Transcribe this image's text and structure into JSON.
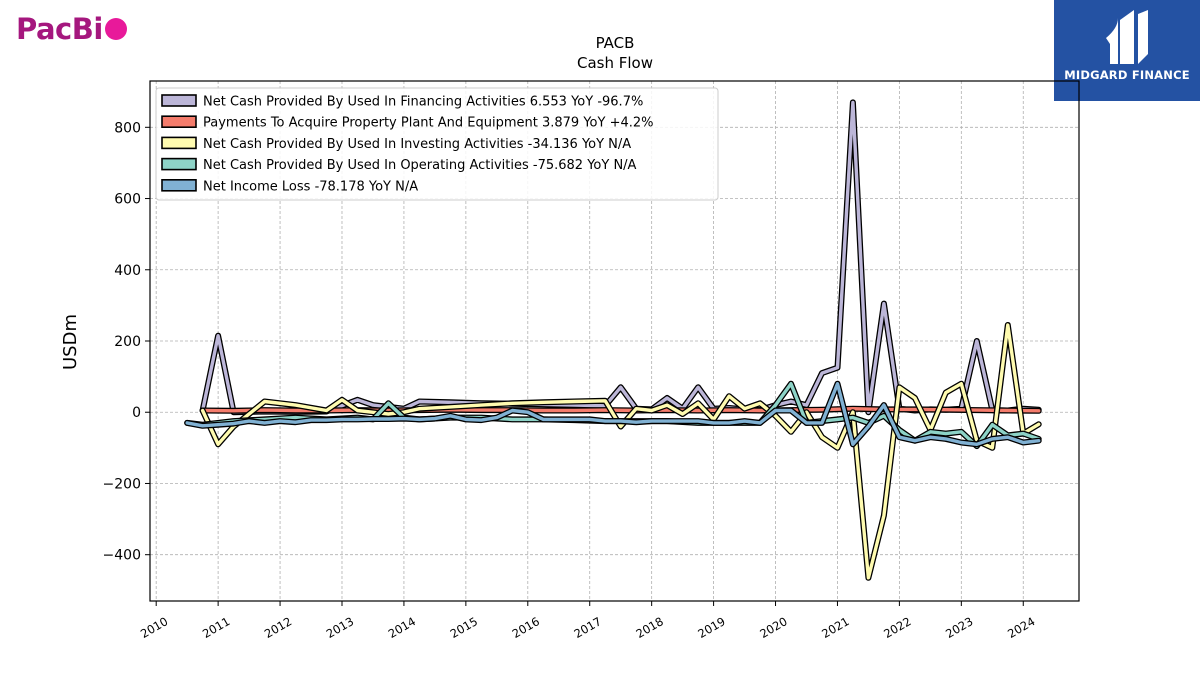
{
  "brand": {
    "left_text": "PacBi",
    "right_logo_text": "MIDGARD FINANCE"
  },
  "colors": {
    "brand_magenta": "#a5177e",
    "brand_pink": "#e8199a",
    "badge_blue": "#2452a3"
  },
  "chart_data": {
    "type": "line",
    "title": "PACB",
    "subtitle": "Cash Flow",
    "xlabel": "",
    "ylabel": "USDm",
    "xlim": [
      2009.9,
      2024.9
    ],
    "ylim": [
      -530,
      930
    ],
    "yticks": [
      -400,
      -200,
      0,
      200,
      400,
      600,
      800
    ],
    "ytick_labels": [
      "−400",
      "−200",
      "0",
      "200",
      "400",
      "600",
      "800"
    ],
    "xticks": [
      2010,
      2011,
      2012,
      2013,
      2014,
      2015,
      2016,
      2017,
      2018,
      2019,
      2020,
      2021,
      2022,
      2023,
      2024
    ],
    "xtick_labels": [
      "2010",
      "2011",
      "2012",
      "2013",
      "2014",
      "2015",
      "2016",
      "2017",
      "2018",
      "2019",
      "2020",
      "2021",
      "2022",
      "2023",
      "2024"
    ],
    "grid": true,
    "legend_position": "top-left",
    "series": [
      {
        "name": "Net Cash Provided By Used In Financing Activities",
        "legend": "Net Cash Provided By Used In Financing Activities  6.553 YoY -96.7%",
        "color": "#bcb6d8",
        "x": [
          2010.75,
          2011.0,
          2011.25,
          2011.75,
          2012.25,
          2012.75,
          2013.25,
          2013.5,
          2013.75,
          2014.0,
          2014.25,
          2014.75,
          2015.25,
          2015.75,
          2016.25,
          2016.75,
          2017.25,
          2017.5,
          2017.75,
          2018.0,
          2018.25,
          2018.5,
          2018.75,
          2019.0,
          2019.25,
          2019.5,
          2019.75,
          2020.0,
          2020.25,
          2020.5,
          2020.75,
          2021.0,
          2021.25,
          2021.5,
          2021.75,
          2022.0,
          2022.25,
          2022.5,
          2022.75,
          2023.0,
          2023.25,
          2023.5,
          2023.75,
          2024.0,
          2024.25
        ],
        "y": [
          5,
          215,
          0,
          2,
          1,
          2,
          35,
          20,
          15,
          10,
          30,
          28,
          25,
          24,
          22,
          20,
          18,
          70,
          10,
          8,
          40,
          10,
          70,
          10,
          12,
          8,
          6,
          20,
          30,
          20,
          110,
          125,
          870,
          0,
          305,
          10,
          5,
          8,
          7,
          10,
          200,
          6,
          5,
          10,
          7
        ]
      },
      {
        "name": "Payments To Acquire Property Plant And Equipment",
        "legend": "Payments To Acquire Property Plant And Equipment  3.879 YoY +4.2%",
        "color": "#f47c6c",
        "x": [
          2010.75,
          2011.25,
          2011.75,
          2012.25,
          2012.75,
          2013.25,
          2013.75,
          2014.25,
          2014.75,
          2015.25,
          2015.75,
          2016.25,
          2016.75,
          2017.25,
          2017.75,
          2018.25,
          2018.75,
          2019.25,
          2019.75,
          2020.25,
          2020.75,
          2021.25,
          2021.75,
          2022.25,
          2022.75,
          2023.25,
          2023.75,
          2024.25
        ],
        "y": [
          5,
          4,
          6,
          5,
          5,
          6,
          5,
          6,
          7,
          6,
          6,
          5,
          5,
          6,
          5,
          6,
          5,
          6,
          5,
          6,
          7,
          10,
          8,
          8,
          7,
          6,
          5,
          4
        ]
      },
      {
        "name": "Net Cash Provided By Used In Investing Activities",
        "legend": "Net Cash Provided By Used In Investing Activities  -34.136 YoY N/A",
        "color": "#fffbb0",
        "x": [
          2010.75,
          2011.0,
          2011.25,
          2011.75,
          2012.25,
          2012.75,
          2013.0,
          2013.25,
          2013.75,
          2014.0,
          2014.25,
          2014.75,
          2015.25,
          2015.75,
          2016.25,
          2016.75,
          2017.25,
          2017.5,
          2017.75,
          2018.0,
          2018.25,
          2018.5,
          2018.75,
          2019.0,
          2019.25,
          2019.5,
          2019.75,
          2020.0,
          2020.25,
          2020.5,
          2020.75,
          2021.0,
          2021.25,
          2021.5,
          2021.75,
          2022.0,
          2022.25,
          2022.5,
          2022.75,
          2023.0,
          2023.25,
          2023.5,
          2023.75,
          2024.0,
          2024.25
        ],
        "y": [
          5,
          -90,
          -40,
          30,
          20,
          5,
          35,
          5,
          -5,
          0,
          10,
          15,
          20,
          25,
          28,
          30,
          32,
          -40,
          10,
          5,
          20,
          -5,
          25,
          -20,
          45,
          10,
          25,
          -10,
          -55,
          0,
          -70,
          -100,
          0,
          -465,
          -290,
          70,
          40,
          -50,
          55,
          80,
          -80,
          -100,
          245,
          -60,
          -34
        ]
      },
      {
        "name": "Net Cash Provided By Used In Operating Activities",
        "legend": "Net Cash Provided By Used In Operating Activities  -75.682 YoY N/A",
        "color": "#8dd3c7",
        "x": [
          2010.5,
          2010.75,
          2011.25,
          2011.75,
          2012.25,
          2012.75,
          2013.25,
          2013.5,
          2013.75,
          2014.0,
          2014.25,
          2014.75,
          2015.25,
          2015.75,
          2016.25,
          2016.75,
          2017.25,
          2017.75,
          2018.25,
          2018.75,
          2019.25,
          2019.75,
          2020.0,
          2020.25,
          2020.5,
          2020.75,
          2021.0,
          2021.25,
          2021.5,
          2021.75,
          2022.0,
          2022.25,
          2022.5,
          2022.75,
          2023.0,
          2023.25,
          2023.5,
          2023.75,
          2024.0,
          2024.25
        ],
        "y": [
          -30,
          -35,
          -25,
          -20,
          -15,
          -20,
          -15,
          -20,
          25,
          -15,
          -20,
          -15,
          -15,
          -20,
          -20,
          -22,
          -25,
          -25,
          -25,
          -30,
          -30,
          -30,
          20,
          80,
          -30,
          -25,
          -20,
          -15,
          -30,
          -10,
          -50,
          -80,
          -55,
          -60,
          -55,
          -95,
          -35,
          -65,
          -60,
          -75
        ]
      },
      {
        "name": "Net Income Loss",
        "legend": "Net Income Loss  -78.178 YoY N/A",
        "color": "#80b1d3",
        "x": [
          2010.5,
          2010.75,
          2011.0,
          2011.25,
          2011.5,
          2011.75,
          2012.0,
          2012.25,
          2012.5,
          2012.75,
          2013.0,
          2013.25,
          2013.5,
          2013.75,
          2014.0,
          2014.25,
          2014.5,
          2014.75,
          2015.0,
          2015.25,
          2015.5,
          2015.75,
          2016.0,
          2016.25,
          2016.5,
          2016.75,
          2017.0,
          2017.25,
          2017.5,
          2017.75,
          2018.0,
          2018.25,
          2018.5,
          2018.75,
          2019.0,
          2019.25,
          2019.5,
          2019.75,
          2020.0,
          2020.25,
          2020.5,
          2020.75,
          2021.0,
          2021.25,
          2021.5,
          2021.75,
          2022.0,
          2022.25,
          2022.5,
          2022.75,
          2023.0,
          2023.25,
          2023.5,
          2023.75,
          2024.0,
          2024.25
        ],
        "y": [
          -30,
          -38,
          -35,
          -32,
          -25,
          -30,
          -25,
          -28,
          -22,
          -22,
          -20,
          -20,
          -19,
          -19,
          -18,
          -20,
          -18,
          -10,
          -20,
          -22,
          -15,
          5,
          0,
          -20,
          -20,
          -20,
          -20,
          -25,
          -25,
          -28,
          -25,
          -25,
          -25,
          -25,
          -30,
          -30,
          -25,
          -30,
          5,
          5,
          -30,
          -30,
          80,
          -90,
          -40,
          20,
          -70,
          -80,
          -70,
          -75,
          -85,
          -90,
          -75,
          -70,
          -85,
          -80
        ]
      }
    ]
  }
}
